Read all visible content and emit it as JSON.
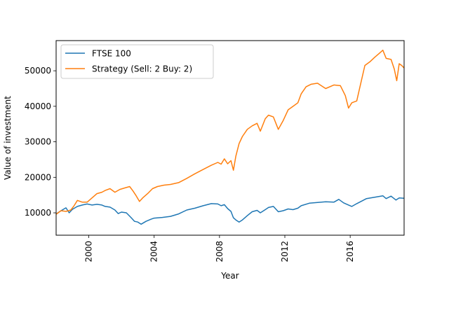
{
  "chart_data": {
    "type": "line",
    "title": "",
    "xlabel": "Year",
    "ylabel": "Value of investment",
    "xlim": [
      1998.0,
      2019.3
    ],
    "ylim": [
      3700,
      58500
    ],
    "x_ticks": [
      2000,
      2004,
      2008,
      2012,
      2016
    ],
    "x_tick_labels": [
      "2000",
      "2004",
      "2008",
      "2012",
      "2016"
    ],
    "y_ticks": [
      10000,
      20000,
      30000,
      40000,
      50000
    ],
    "y_tick_labels": [
      "10000",
      "20000",
      "30000",
      "40000",
      "50000"
    ],
    "grid": false,
    "legend_position": "upper-left",
    "series": [
      {
        "name": "FTSE 100",
        "color": "#1f77b4",
        "points": [
          [
            1998.0,
            9700
          ],
          [
            1998.3,
            10600
          ],
          [
            1998.6,
            11400
          ],
          [
            1998.8,
            10000
          ],
          [
            1999.0,
            11000
          ],
          [
            1999.3,
            11800
          ],
          [
            1999.6,
            12200
          ],
          [
            1999.9,
            12500
          ],
          [
            2000.2,
            12200
          ],
          [
            2000.5,
            12400
          ],
          [
            2000.8,
            12200
          ],
          [
            2001.0,
            11800
          ],
          [
            2001.3,
            11600
          ],
          [
            2001.6,
            10800
          ],
          [
            2001.8,
            9800
          ],
          [
            2002.0,
            10200
          ],
          [
            2002.3,
            10000
          ],
          [
            2002.6,
            8600
          ],
          [
            2002.8,
            7600
          ],
          [
            2003.0,
            7400
          ],
          [
            2003.2,
            6800
          ],
          [
            2003.5,
            7600
          ],
          [
            2003.8,
            8200
          ],
          [
            2004.0,
            8500
          ],
          [
            2004.5,
            8700
          ],
          [
            2005.0,
            9000
          ],
          [
            2005.5,
            9700
          ],
          [
            2006.0,
            10800
          ],
          [
            2006.5,
            11300
          ],
          [
            2007.0,
            12000
          ],
          [
            2007.5,
            12600
          ],
          [
            2007.9,
            12500
          ],
          [
            2008.1,
            12000
          ],
          [
            2008.3,
            12300
          ],
          [
            2008.5,
            11200
          ],
          [
            2008.7,
            10400
          ],
          [
            2008.85,
            8600
          ],
          [
            2009.0,
            8000
          ],
          [
            2009.2,
            7400
          ],
          [
            2009.4,
            8000
          ],
          [
            2009.7,
            9200
          ],
          [
            2010.0,
            10300
          ],
          [
            2010.3,
            10700
          ],
          [
            2010.5,
            10000
          ],
          [
            2010.8,
            10900
          ],
          [
            2011.0,
            11500
          ],
          [
            2011.3,
            11800
          ],
          [
            2011.6,
            10300
          ],
          [
            2011.9,
            10600
          ],
          [
            2012.2,
            11100
          ],
          [
            2012.5,
            10900
          ],
          [
            2012.8,
            11300
          ],
          [
            2013.0,
            12000
          ],
          [
            2013.5,
            12700
          ],
          [
            2014.0,
            12900
          ],
          [
            2014.5,
            13100
          ],
          [
            2015.0,
            13000
          ],
          [
            2015.3,
            13800
          ],
          [
            2015.6,
            12800
          ],
          [
            2015.9,
            12200
          ],
          [
            2016.1,
            11800
          ],
          [
            2016.4,
            12600
          ],
          [
            2016.7,
            13300
          ],
          [
            2017.0,
            14000
          ],
          [
            2017.5,
            14400
          ],
          [
            2018.0,
            14800
          ],
          [
            2018.2,
            14000
          ],
          [
            2018.5,
            14700
          ],
          [
            2018.8,
            13600
          ],
          [
            2019.0,
            14200
          ],
          [
            2019.3,
            14100
          ]
        ]
      },
      {
        "name": "Strategy (Sell: 2 Buy: 2)",
        "color": "#ff7f0e",
        "points": [
          [
            1998.0,
            9600
          ],
          [
            1998.3,
            10600
          ],
          [
            1998.6,
            10400
          ],
          [
            1998.9,
            10800
          ],
          [
            1999.1,
            12000
          ],
          [
            1999.3,
            13500
          ],
          [
            1999.6,
            13000
          ],
          [
            1999.9,
            13000
          ],
          [
            2000.2,
            14200
          ],
          [
            2000.5,
            15400
          ],
          [
            2000.8,
            15800
          ],
          [
            2001.0,
            16300
          ],
          [
            2001.3,
            16800
          ],
          [
            2001.6,
            15800
          ],
          [
            2001.9,
            16600
          ],
          [
            2002.2,
            17000
          ],
          [
            2002.5,
            17400
          ],
          [
            2002.7,
            16200
          ],
          [
            2002.9,
            14800
          ],
          [
            2003.1,
            13200
          ],
          [
            2003.3,
            14200
          ],
          [
            2003.6,
            15400
          ],
          [
            2003.9,
            16800
          ],
          [
            2004.2,
            17400
          ],
          [
            2004.6,
            17800
          ],
          [
            2005.0,
            18000
          ],
          [
            2005.5,
            18500
          ],
          [
            2006.0,
            19700
          ],
          [
            2006.5,
            21000
          ],
          [
            2007.0,
            22200
          ],
          [
            2007.5,
            23400
          ],
          [
            2007.9,
            24200
          ],
          [
            2008.1,
            23700
          ],
          [
            2008.3,
            25200
          ],
          [
            2008.5,
            23800
          ],
          [
            2008.7,
            24700
          ],
          [
            2008.85,
            22000
          ],
          [
            2009.0,
            26000
          ],
          [
            2009.2,
            29500
          ],
          [
            2009.4,
            31500
          ],
          [
            2009.7,
            33500
          ],
          [
            2010.0,
            34500
          ],
          [
            2010.3,
            35200
          ],
          [
            2010.5,
            33000
          ],
          [
            2010.8,
            36500
          ],
          [
            2011.0,
            37500
          ],
          [
            2011.3,
            37000
          ],
          [
            2011.6,
            33500
          ],
          [
            2011.9,
            36000
          ],
          [
            2012.2,
            39000
          ],
          [
            2012.5,
            40000
          ],
          [
            2012.8,
            41000
          ],
          [
            2013.0,
            43500
          ],
          [
            2013.3,
            45500
          ],
          [
            2013.6,
            46200
          ],
          [
            2014.0,
            46500
          ],
          [
            2014.5,
            45000
          ],
          [
            2015.0,
            46000
          ],
          [
            2015.4,
            45800
          ],
          [
            2015.7,
            43000
          ],
          [
            2015.9,
            39500
          ],
          [
            2016.1,
            41000
          ],
          [
            2016.4,
            41500
          ],
          [
            2016.6,
            45500
          ],
          [
            2016.9,
            51500
          ],
          [
            2017.2,
            52500
          ],
          [
            2017.5,
            53800
          ],
          [
            2017.8,
            55000
          ],
          [
            2018.0,
            55800
          ],
          [
            2018.2,
            53500
          ],
          [
            2018.5,
            53200
          ],
          [
            2018.7,
            50500
          ],
          [
            2018.85,
            47200
          ],
          [
            2019.0,
            52000
          ],
          [
            2019.15,
            51500
          ],
          [
            2019.3,
            50800
          ]
        ]
      }
    ]
  }
}
